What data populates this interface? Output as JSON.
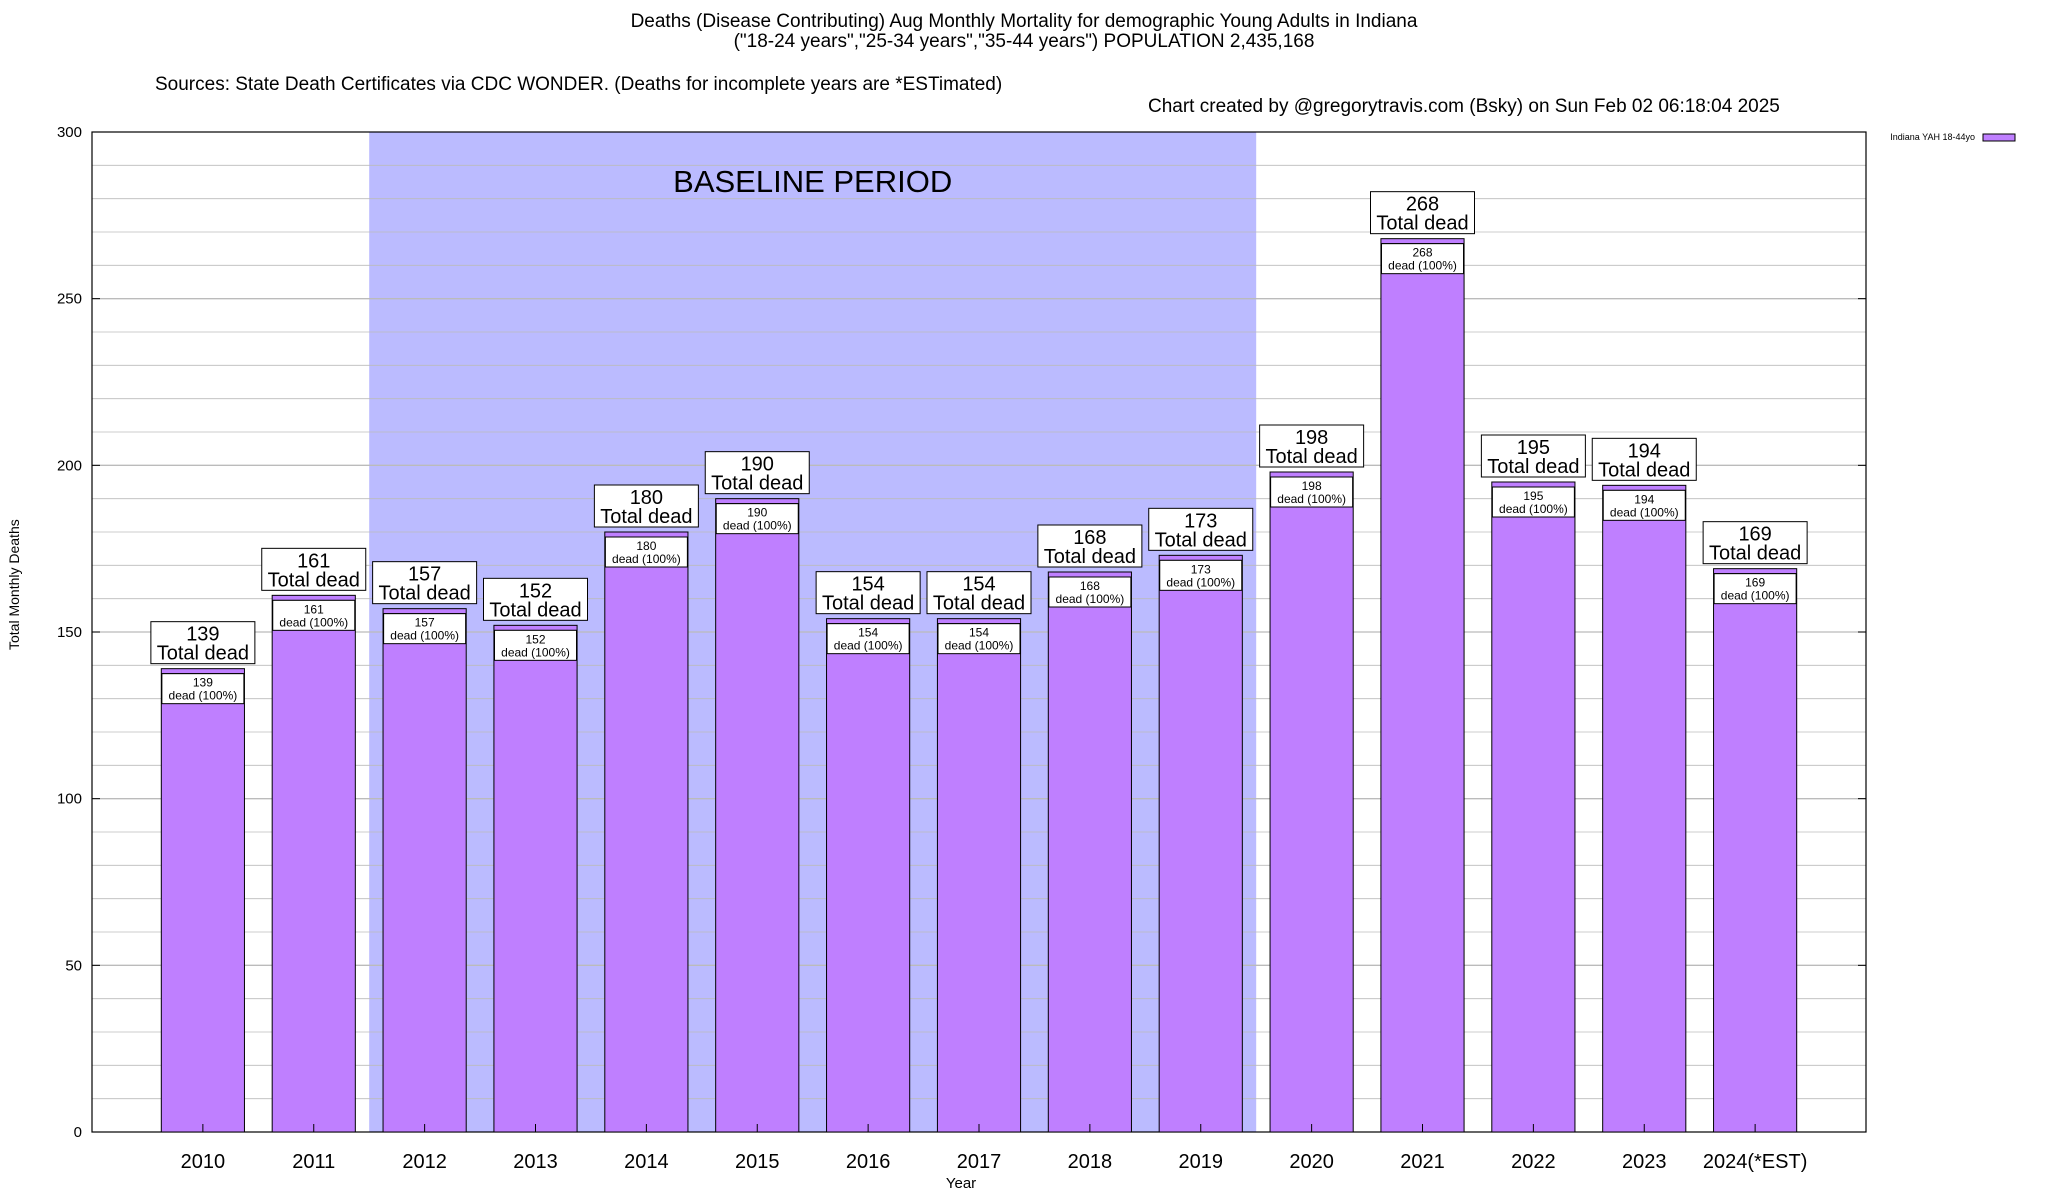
{
  "header": {
    "title_line1": "Deaths (Disease Contributing) Aug Monthly Mortality for demographic Young Adults in Indiana",
    "title_line2": "(\"18-24 years\",\"25-34 years\",\"35-44 years\") POPULATION 2,435,168",
    "sources": "Sources: State Death Certificates via CDC WONDER. (Deaths for incomplete years are *ESTimated)",
    "credit": "Chart created by @gregorytravis.com (Bsky) on Sun Feb 02 06:18:04 2025"
  },
  "colors": {
    "bar": "#bf7fff",
    "baseline_band": "#bbbbff",
    "grid": "#bbbbbb"
  },
  "chart_data": {
    "type": "bar",
    "categories": [
      "2010",
      "2011",
      "2012",
      "2013",
      "2014",
      "2015",
      "2016",
      "2017",
      "2018",
      "2019",
      "2020",
      "2021",
      "2022",
      "2023",
      "2024(*EST)"
    ],
    "series": [
      {
        "name": "Indiana YAH 18-44yo",
        "values": [
          139,
          161,
          157,
          152,
          180,
          190,
          154,
          154,
          168,
          173,
          198,
          268,
          195,
          194,
          169
        ]
      }
    ],
    "bar_label_suffix": "Total dead",
    "inner_label_suffix": "dead (100%)",
    "xlabel": "Year",
    "ylabel": "Total Monthly Deaths",
    "ylim": [
      0,
      300
    ],
    "yticks": [
      0,
      50,
      100,
      150,
      200,
      250,
      300
    ],
    "grid": true,
    "legend_position": "top-right",
    "annotation": {
      "text": "BASELINE PERIOD",
      "from_category": "2012",
      "to_category": "2019"
    }
  }
}
